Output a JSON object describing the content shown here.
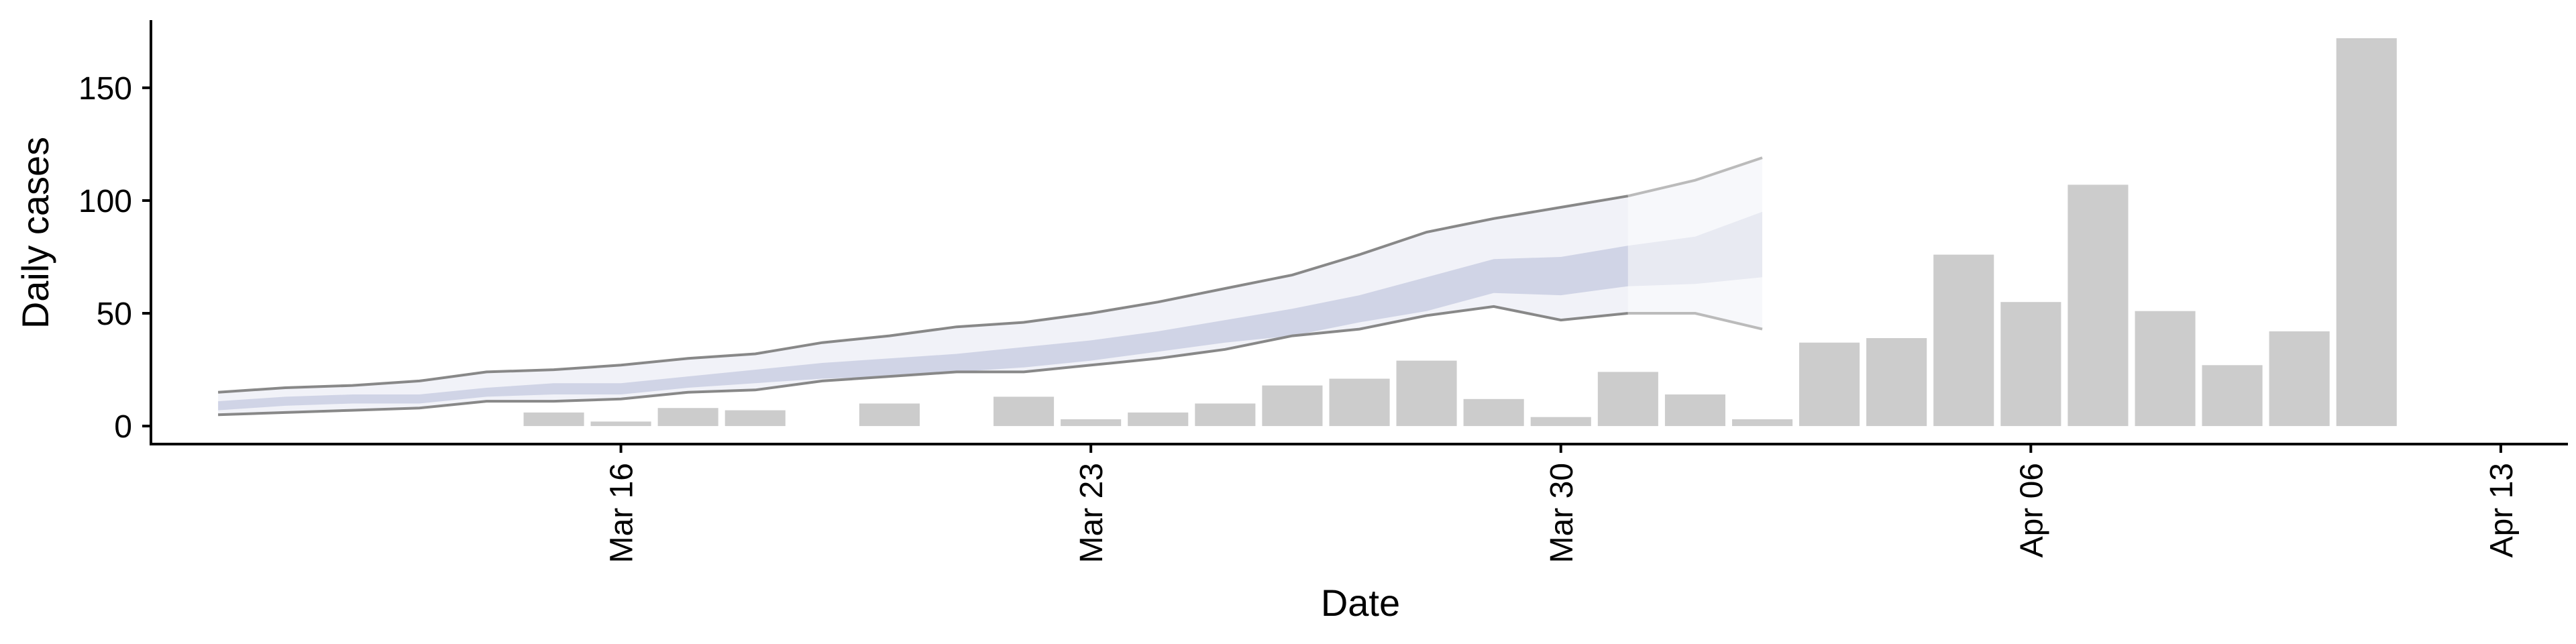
{
  "chart_data": {
    "type": "bar",
    "xlabel": "Date",
    "ylabel": "Daily cases",
    "x_ticks": [
      "2020-03-16",
      "2020-03-23",
      "2020-03-30",
      "2020-04-06",
      "2020-04-13"
    ],
    "x_tick_labels": [
      "Mar 16",
      "Mar 23",
      "Mar 30",
      "Apr 06",
      "Apr 13"
    ],
    "xlim": [
      "2020-03-09",
      "2020-04-14"
    ],
    "y_ticks": [
      0,
      50,
      100,
      150
    ],
    "ylim": [
      -8,
      180
    ],
    "grid": false,
    "bars": {
      "dates": [
        "2020-03-15",
        "2020-03-16",
        "2020-03-17",
        "2020-03-18",
        "2020-03-19",
        "2020-03-20",
        "2020-03-21",
        "2020-03-22",
        "2020-03-23",
        "2020-03-24",
        "2020-03-25",
        "2020-03-26",
        "2020-03-27",
        "2020-03-28",
        "2020-03-29",
        "2020-03-30",
        "2020-03-31",
        "2020-04-01",
        "2020-04-02",
        "2020-04-03",
        "2020-04-04",
        "2020-04-05",
        "2020-04-06",
        "2020-04-07",
        "2020-04-08",
        "2020-04-09",
        "2020-04-10",
        "2020-04-11",
        "2020-04-12"
      ],
      "values": [
        6,
        2,
        8,
        7,
        0,
        10,
        0,
        13,
        3,
        6,
        10,
        18,
        21,
        29,
        12,
        4,
        24,
        14,
        3,
        37,
        39,
        76,
        55,
        107,
        51,
        27,
        42,
        172,
        0
      ]
    },
    "estimate": {
      "dates": [
        "2020-03-10",
        "2020-03-11",
        "2020-03-12",
        "2020-03-13",
        "2020-03-14",
        "2020-03-15",
        "2020-03-16",
        "2020-03-17",
        "2020-03-18",
        "2020-03-19",
        "2020-03-20",
        "2020-03-21",
        "2020-03-22",
        "2020-03-23",
        "2020-03-24",
        "2020-03-25",
        "2020-03-26",
        "2020-03-27",
        "2020-03-28",
        "2020-03-29",
        "2020-03-30",
        "2020-03-31",
        "2020-04-01",
        "2020-04-02",
        "2020-04-03"
      ],
      "outer_upper": [
        15,
        17,
        18,
        20,
        24,
        25,
        27,
        30,
        32,
        37,
        40,
        44,
        46,
        50,
        55,
        61,
        67,
        76,
        86,
        92,
        97,
        102,
        109,
        119,
        null
      ],
      "outer_lower": [
        5,
        6,
        7,
        8,
        11,
        11,
        12,
        15,
        16,
        20,
        22,
        24,
        24,
        27,
        30,
        34,
        40,
        43,
        49,
        53,
        47,
        50,
        50,
        43,
        null
      ],
      "inner_upper": [
        11,
        13,
        14,
        14,
        17,
        19,
        19,
        22,
        25,
        28,
        30,
        32,
        35,
        38,
        42,
        47,
        52,
        58,
        66,
        74,
        75,
        80,
        84,
        95,
        null
      ],
      "inner_lower": [
        7,
        9,
        10,
        10,
        13,
        14,
        14,
        17,
        19,
        21,
        22,
        24,
        26,
        29,
        33,
        37,
        40,
        46,
        51,
        59,
        58,
        62,
        63,
        66,
        null
      ],
      "fill_color": "#8d96c2",
      "edge_color_nowcast": "#888888",
      "edge_color_forecast": "#bbbbbb",
      "forecast_start": "2020-03-31"
    }
  }
}
